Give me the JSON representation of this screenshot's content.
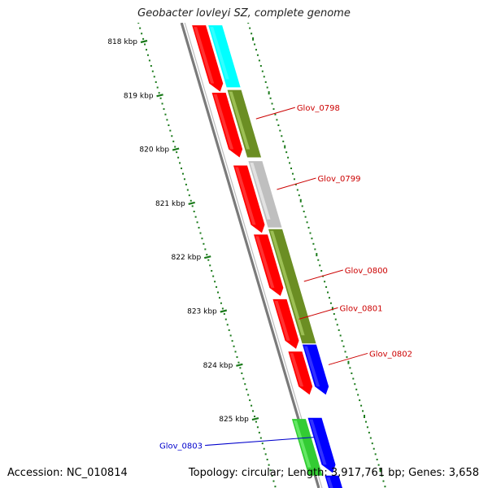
{
  "title": "Geobacter lovleyi SZ, complete genome",
  "accession_label": "Accession: NC_010814",
  "summary_label": "Topology: circular; Length: 3,917,761 bp; Genes: 3,658",
  "colors": {
    "backbone": "#7a7a7a",
    "tick": "#1a7a1a",
    "red": "#ff0000",
    "cyan": "#00ffff",
    "olive": "#6b8e23",
    "gray": "#bfbfbf",
    "blue": "#0000ff",
    "green": "#33cc33",
    "label_red": "#cc0000",
    "label_blue": "#0000cc"
  },
  "ruler": [
    {
      "pos_kbp": 818,
      "label": "818 kbp"
    },
    {
      "pos_kbp": 819,
      "label": "819 kbp"
    },
    {
      "pos_kbp": 820,
      "label": "820 kbp"
    },
    {
      "pos_kbp": 821,
      "label": "821 kbp"
    },
    {
      "pos_kbp": 822,
      "label": "822 kbp"
    },
    {
      "pos_kbp": 823,
      "label": "823 kbp"
    },
    {
      "pos_kbp": 824,
      "label": "824 kbp"
    },
    {
      "pos_kbp": 825,
      "label": "825 kbp"
    }
  ],
  "features": [
    {
      "track": 0,
      "start_kbp": 817.7,
      "end_kbp": 818.93,
      "color": "red",
      "arrow": true
    },
    {
      "track": 1,
      "start_kbp": 817.7,
      "end_kbp": 818.85,
      "color": "cyan",
      "arrow": false
    },
    {
      "track": 0,
      "start_kbp": 818.95,
      "end_kbp": 820.15,
      "color": "red",
      "arrow": true
    },
    {
      "track": 1,
      "start_kbp": 818.9,
      "end_kbp": 820.15,
      "color": "olive",
      "arrow": false,
      "label": "Glov_0798"
    },
    {
      "track": 0,
      "start_kbp": 820.3,
      "end_kbp": 821.55,
      "color": "red",
      "arrow": true
    },
    {
      "track": 1,
      "start_kbp": 820.22,
      "end_kbp": 821.45,
      "color": "gray",
      "arrow": false,
      "label": "Glov_0799"
    },
    {
      "track": 0,
      "start_kbp": 821.58,
      "end_kbp": 822.72,
      "color": "red",
      "arrow": true
    },
    {
      "track": 1,
      "start_kbp": 821.48,
      "end_kbp": 823.6,
      "color": "olive",
      "arrow": false,
      "label": "Glov_0800"
    },
    {
      "track": 0,
      "start_kbp": 822.78,
      "end_kbp": 823.7,
      "color": "red",
      "arrow": true,
      "label": "Glov_0801"
    },
    {
      "track": 0,
      "start_kbp": 823.75,
      "end_kbp": 824.55,
      "color": "red",
      "arrow": true
    },
    {
      "track": 1,
      "start_kbp": 823.62,
      "end_kbp": 824.55,
      "color": "blue",
      "arrow": true,
      "label": "Glov_0802"
    },
    {
      "track": -1,
      "start_kbp": 825.0,
      "end_kbp": 826.05,
      "color": "green",
      "arrow": false
    },
    {
      "track": 0,
      "start_kbp": 824.98,
      "end_kbp": 826.0,
      "color": "blue",
      "arrow": true,
      "label": "Glov_0803",
      "label_color": "label_blue"
    },
    {
      "track": 0,
      "start_kbp": 826.05,
      "end_kbp": 826.7,
      "color": "blue",
      "arrow": true
    }
  ]
}
